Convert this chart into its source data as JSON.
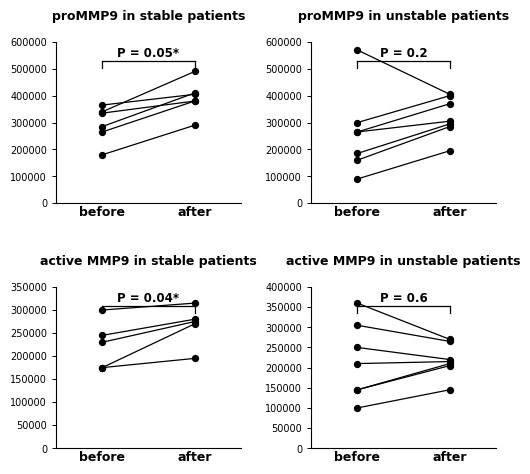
{
  "panels": [
    {
      "title": "proMMP9 in stable patients",
      "p_text": "P = 0.05*",
      "ylim": [
        0,
        600000
      ],
      "yticks": [
        0,
        100000,
        200000,
        300000,
        400000,
        500000,
        600000
      ],
      "before": [
        180000,
        265000,
        285000,
        335000,
        340000,
        365000
      ],
      "after": [
        290000,
        380000,
        410000,
        380000,
        490000,
        405000
      ]
    },
    {
      "title": "proMMP9 in unstable patients",
      "p_text": "P = 0.2",
      "ylim": [
        0,
        600000
      ],
      "yticks": [
        0,
        100000,
        200000,
        300000,
        400000,
        500000,
        600000
      ],
      "before": [
        90000,
        160000,
        185000,
        265000,
        265000,
        300000,
        570000
      ],
      "after": [
        195000,
        285000,
        295000,
        305000,
        370000,
        400000,
        405000
      ]
    },
    {
      "title": "active MMP9 in stable patients",
      "p_text": "P = 0.04*",
      "ylim": [
        0,
        350000
      ],
      "yticks": [
        0,
        50000,
        100000,
        150000,
        200000,
        250000,
        300000,
        350000
      ],
      "before": [
        175000,
        175000,
        230000,
        245000,
        300000
      ],
      "after": [
        195000,
        270000,
        275000,
        280000,
        315000
      ]
    },
    {
      "title": "active MMP9 in unstable patients",
      "p_text": "P = 0.6",
      "ylim": [
        0,
        400000
      ],
      "yticks": [
        0,
        50000,
        100000,
        150000,
        200000,
        250000,
        300000,
        350000,
        400000
      ],
      "before": [
        100000,
        145000,
        145000,
        210000,
        250000,
        305000,
        360000
      ],
      "after": [
        145000,
        205000,
        210000,
        215000,
        220000,
        265000,
        270000
      ]
    }
  ],
  "dot_color": "#000000",
  "line_color": "#000000",
  "dot_size": 18,
  "line_width": 0.9,
  "title_fontsize": 9,
  "tick_fontsize": 7,
  "label_fontsize": 9,
  "p_fontsize": 8.5,
  "background_color": "#ffffff"
}
